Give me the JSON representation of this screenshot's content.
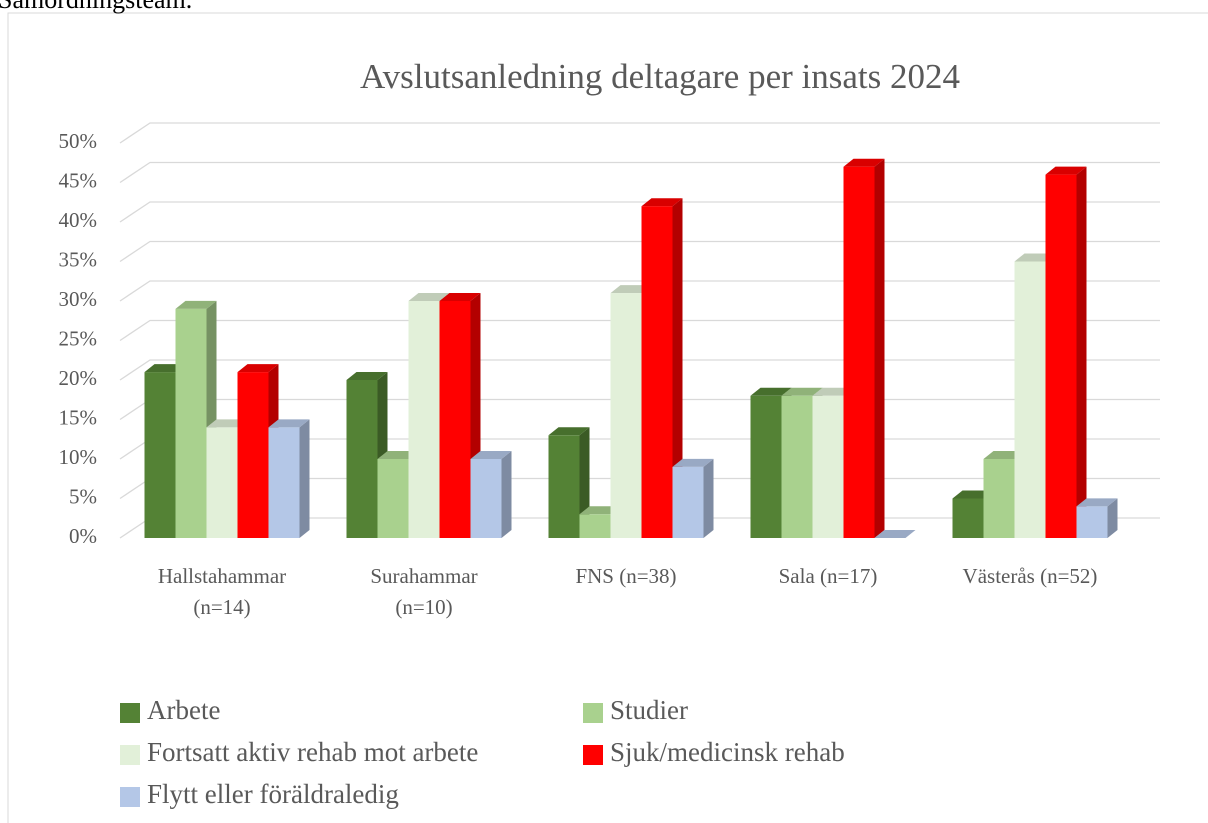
{
  "page_text": "Samordningsteam.",
  "chart_data": {
    "type": "bar3d",
    "title": "Avslutsanledning deltagare per insats 2024",
    "categories": [
      "Hallstahammar (n=14)",
      "Surahammar (n=10)",
      "FNS (n=38)",
      "Sala (n=17)",
      "Västerås (n=52)"
    ],
    "series": [
      {
        "name": "Arbete",
        "color": "#548235",
        "values": [
          21,
          20,
          13,
          18,
          5
        ]
      },
      {
        "name": "Studier",
        "color": "#a9d18e",
        "values": [
          29,
          10,
          3,
          18,
          10
        ]
      },
      {
        "name": "Fortsatt aktiv rehab mot arbete",
        "color": "#e2f0d9",
        "values": [
          14,
          30,
          31,
          18,
          35
        ]
      },
      {
        "name": "Sjuk/medicinsk rehab",
        "color": "#ff0000",
        "values": [
          21,
          30,
          42,
          47,
          46
        ]
      },
      {
        "name": "Flytt eller föräldraledig",
        "color": "#b4c7e7",
        "values": [
          14,
          10,
          9,
          0,
          4
        ]
      }
    ],
    "ylim": [
      0,
      50
    ],
    "yticks": [
      {
        "value": 0,
        "label": "0%"
      },
      {
        "value": 5,
        "label": "5%"
      },
      {
        "value": 10,
        "label": "10%"
      },
      {
        "value": 15,
        "label": "15%"
      },
      {
        "value": 20,
        "label": "20%"
      },
      {
        "value": 25,
        "label": "25%"
      },
      {
        "value": 30,
        "label": "30%"
      },
      {
        "value": 35,
        "label": "35%"
      },
      {
        "value": 40,
        "label": "40%"
      },
      {
        "value": 45,
        "label": "45%"
      },
      {
        "value": 50,
        "label": "50%"
      }
    ],
    "grid": true,
    "legend": "bottom"
  }
}
